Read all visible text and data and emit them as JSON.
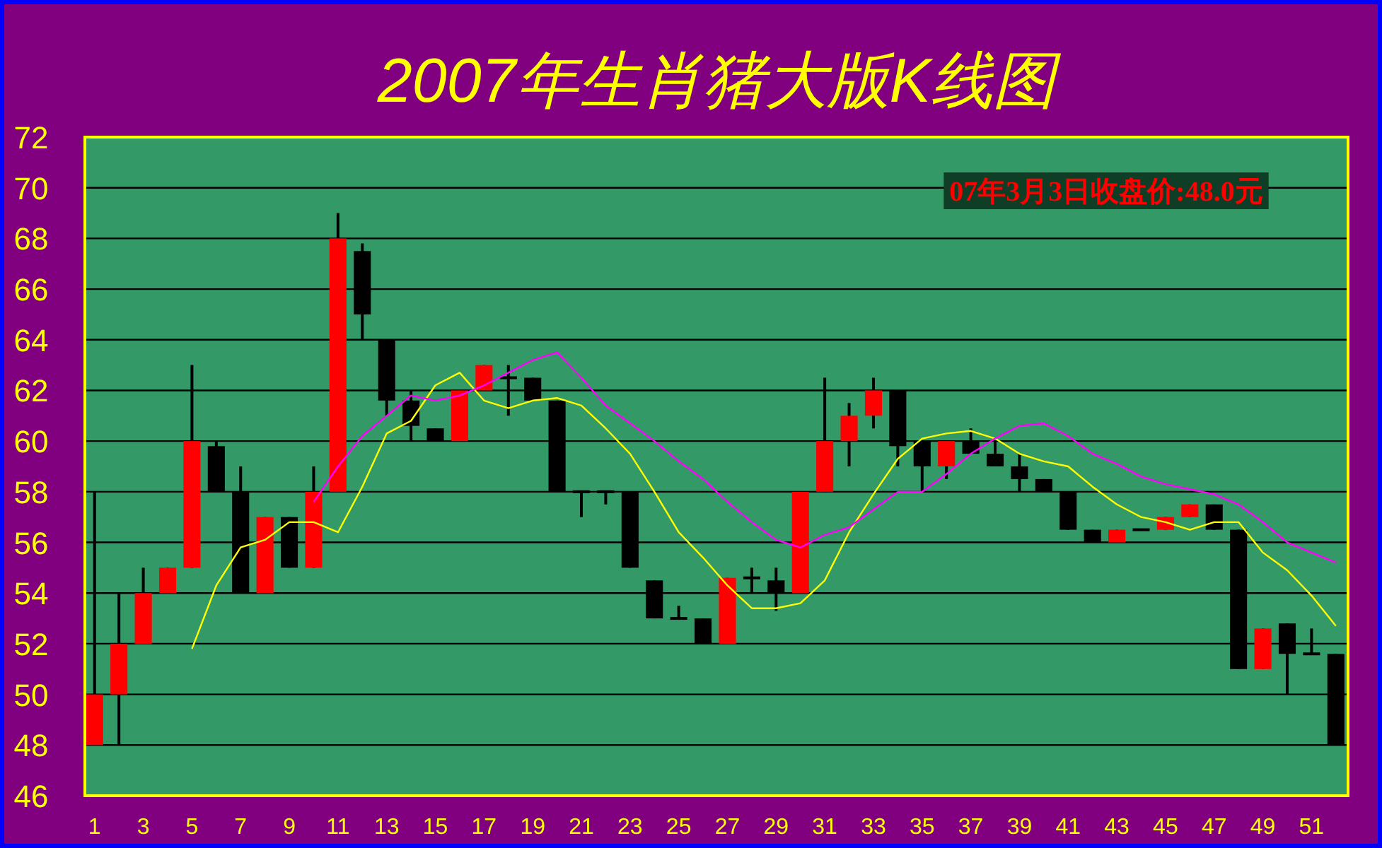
{
  "chart_data": {
    "type": "candlestick",
    "title": "2007年生肖猪大版K线图",
    "x": [
      1,
      2,
      3,
      4,
      5,
      6,
      7,
      8,
      9,
      10,
      11,
      12,
      13,
      14,
      15,
      16,
      17,
      18,
      19,
      20,
      21,
      22,
      23,
      24,
      25,
      26,
      27,
      28,
      29,
      30,
      31,
      32,
      33,
      34,
      35,
      36,
      37,
      38,
      39,
      40,
      41,
      42,
      43,
      44,
      45,
      46,
      47,
      48,
      49,
      50,
      51,
      52
    ],
    "ohlc": [
      [
        48,
        58,
        48,
        50
      ],
      [
        50,
        54,
        48,
        52
      ],
      [
        52,
        55,
        52,
        54
      ],
      [
        54,
        55,
        54,
        55
      ],
      [
        55,
        63,
        55,
        60
      ],
      [
        59.8,
        60,
        58,
        58
      ],
      [
        58,
        59,
        54,
        54
      ],
      [
        54,
        57,
        54,
        57
      ],
      [
        57,
        57,
        55,
        55
      ],
      [
        55,
        59,
        55,
        58
      ],
      [
        58,
        69,
        58,
        68
      ],
      [
        67.5,
        67.8,
        64,
        65
      ],
      [
        64,
        64,
        61,
        61.6
      ],
      [
        61.6,
        62,
        60,
        60.6
      ],
      [
        60.5,
        60.5,
        60,
        60
      ],
      [
        60,
        62,
        60,
        62
      ],
      [
        62,
        63,
        62,
        63
      ],
      [
        62.5,
        63,
        61,
        62.5
      ],
      [
        62.5,
        62.5,
        61.6,
        61.6
      ],
      [
        61.6,
        61.6,
        58,
        58
      ],
      [
        58,
        58,
        57,
        58
      ],
      [
        58,
        58,
        57.5,
        58
      ],
      [
        58,
        58,
        55,
        55
      ],
      [
        54.5,
        54.5,
        53,
        53
      ],
      [
        53,
        53.5,
        53,
        53
      ],
      [
        53,
        53,
        52,
        52
      ],
      [
        52,
        54.6,
        52,
        54.6
      ],
      [
        54.6,
        55,
        54,
        54.6
      ],
      [
        54.5,
        55,
        53.3,
        54
      ],
      [
        54,
        58,
        54,
        58
      ],
      [
        58,
        62.5,
        58,
        60
      ],
      [
        60,
        61.5,
        59,
        61
      ],
      [
        61,
        62.5,
        60.5,
        62
      ],
      [
        62,
        62,
        59,
        59.8
      ],
      [
        60,
        60,
        58,
        59
      ],
      [
        59,
        60,
        58.5,
        60
      ],
      [
        60,
        60.5,
        59.5,
        59.5
      ],
      [
        59.5,
        60,
        59,
        59
      ],
      [
        59,
        59.5,
        58,
        58.5
      ],
      [
        58.5,
        58.5,
        58,
        58
      ],
      [
        58,
        58,
        56.5,
        56.5
      ],
      [
        56.5,
        56.5,
        56,
        56
      ],
      [
        56,
        56.5,
        56,
        56.5
      ],
      [
        56.5,
        56.5,
        56.5,
        56.5
      ],
      [
        56.5,
        57,
        56.5,
        57
      ],
      [
        57,
        57.5,
        57,
        57.5
      ],
      [
        57.5,
        57.5,
        56.5,
        56.5
      ],
      [
        56.5,
        56.5,
        51,
        51
      ],
      [
        51,
        52.6,
        51,
        52.6
      ],
      [
        52.8,
        52.8,
        50,
        51.6
      ],
      [
        51.6,
        52.6,
        51.6,
        51.6
      ],
      [
        51.6,
        51.6,
        48,
        48
      ]
    ],
    "series": [
      {
        "type": "line",
        "color": "#ffff00",
        "x": [
          5,
          6,
          7,
          8,
          9,
          10,
          11,
          12,
          13,
          14,
          15,
          16,
          17,
          18,
          19,
          20,
          21,
          22,
          23,
          24,
          25,
          26,
          27,
          28,
          29,
          30,
          31,
          32,
          33,
          34,
          35,
          36,
          37,
          38,
          39,
          40,
          41,
          42,
          43,
          44,
          45,
          46,
          47,
          48,
          49,
          50,
          51,
          52
        ],
        "values": [
          51.8,
          54.3,
          55.8,
          56.1,
          56.8,
          56.8,
          56.4,
          58.2,
          60.3,
          60.8,
          62.2,
          62.7,
          61.6,
          61.3,
          61.6,
          61.7,
          61.4,
          60.5,
          59.5,
          58,
          56.4,
          55.4,
          54.3,
          53.4,
          53.4,
          53.6,
          54.5,
          56.4,
          57.9,
          59.3,
          60.1,
          60.3,
          60.4,
          60.1,
          59.5,
          59.2,
          59,
          58.2,
          57.5,
          57,
          56.8,
          56.5,
          56.8,
          56.8,
          55.6,
          54.9,
          53.9,
          52.7
        ]
      },
      {
        "type": "line",
        "color": "#ff00ff",
        "x": [
          10,
          11,
          12,
          13,
          14,
          15,
          16,
          17,
          18,
          19,
          20,
          21,
          22,
          23,
          24,
          25,
          26,
          27,
          28,
          29,
          30,
          31,
          32,
          33,
          34,
          35,
          36,
          37,
          38,
          39,
          40,
          41,
          42,
          43,
          44,
          45,
          46,
          47,
          48,
          49,
          50,
          51,
          52
        ],
        "values": [
          57.6,
          59,
          60.2,
          61,
          61.8,
          61.6,
          61.8,
          62.2,
          62.7,
          63.2,
          63.5,
          62.5,
          61.4,
          60.7,
          60,
          59.2,
          58.5,
          57.6,
          56.8,
          56.1,
          55.8,
          56.3,
          56.6,
          57.3,
          58,
          58,
          58.7,
          59.5,
          60.1,
          60.6,
          60.7,
          60.2,
          59.5,
          59.1,
          58.6,
          58.3,
          58.1,
          57.9,
          57.5,
          56.8,
          56,
          55.6,
          55.2
        ]
      }
    ],
    "xlim": [
      0.6,
      52.5
    ],
    "xticks": [
      1,
      3,
      5,
      7,
      9,
      11,
      13,
      15,
      17,
      19,
      21,
      23,
      25,
      27,
      29,
      31,
      33,
      35,
      37,
      39,
      41,
      43,
      45,
      47,
      49,
      51
    ],
    "ylim": [
      46,
      72
    ],
    "yticks": [
      46,
      48,
      50,
      52,
      54,
      56,
      58,
      60,
      62,
      64,
      66,
      68,
      70,
      72
    ],
    "grid": "y",
    "annotations": [
      "07年3月3日收盘价:48.0元"
    ]
  }
}
